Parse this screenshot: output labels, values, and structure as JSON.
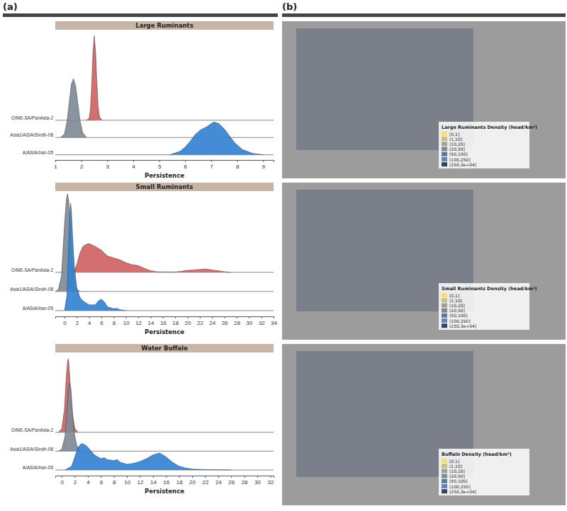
{
  "panels": [
    "(a)",
    "(b)"
  ],
  "chart_data": [
    {
      "type": "ridgeline",
      "title": "Large Ruminants",
      "x_label": "Persistence",
      "xlim": [
        1,
        9.4
      ],
      "xticks": [
        1,
        2,
        3,
        4,
        5,
        6,
        7,
        8,
        9
      ],
      "ylim": [
        -0.3,
        7.2
      ],
      "series": [
        {
          "name": "O/ME-SA/PanAsia-2",
          "color": "#cf6363",
          "x": [
            2.2,
            2.3,
            2.35,
            2.4,
            2.45,
            2.5,
            2.55,
            2.6,
            2.65,
            2.7,
            2.8
          ],
          "values": [
            0,
            0.1,
            0.6,
            2.0,
            3.9,
            4.9,
            4.0,
            2.2,
            0.8,
            0.2,
            0
          ]
        },
        {
          "name": "Asia1/ASIA/Sindh-08",
          "color": "#7f8b97",
          "x": [
            1.2,
            1.35,
            1.45,
            1.55,
            1.62,
            1.7,
            1.78,
            1.85,
            1.95,
            2.05,
            2.2
          ],
          "values": [
            0,
            0.2,
            0.9,
            2.2,
            3.1,
            3.4,
            3.0,
            2.2,
            1.0,
            0.3,
            0
          ]
        },
        {
          "name": "A/ASIA/Iran-05",
          "color": "#3483d2",
          "x": [
            5.4,
            5.8,
            6.0,
            6.2,
            6.4,
            6.6,
            6.8,
            7.0,
            7.1,
            7.3,
            7.5,
            7.7,
            7.9,
            8.2,
            8.6,
            9.0
          ],
          "values": [
            0,
            0.2,
            0.45,
            0.8,
            1.2,
            1.45,
            1.6,
            1.8,
            1.9,
            1.8,
            1.5,
            1.1,
            0.7,
            0.3,
            0.08,
            0
          ]
        }
      ]
    },
    {
      "type": "ridgeline",
      "title": "Small Ruminants",
      "x_label": "Persistence",
      "xlim": [
        -1.5,
        34
      ],
      "xticks": [
        0,
        2,
        4,
        6,
        8,
        10,
        12,
        14,
        16,
        18,
        20,
        22,
        24,
        26,
        28,
        30,
        32,
        34
      ],
      "ylim": [
        -0.3,
        6.2
      ],
      "series": [
        {
          "name": "O/ME-SA/PanAsia-2",
          "color": "#cf6363",
          "x": [
            0.5,
            1.5,
            2,
            2.5,
            3,
            3.5,
            4,
            5,
            6,
            6.5,
            7,
            8,
            9,
            10,
            11,
            12,
            13,
            14,
            15,
            16,
            18,
            19,
            20,
            21,
            22,
            23,
            24,
            25,
            26,
            27
          ],
          "values": [
            0,
            0.05,
            0.4,
            1.0,
            1.35,
            1.45,
            1.5,
            1.35,
            1.15,
            1.0,
            0.85,
            0.75,
            0.65,
            0.5,
            0.4,
            0.35,
            0.2,
            0.08,
            0.03,
            0.02,
            0.02,
            0.05,
            0.1,
            0.12,
            0.15,
            0.17,
            0.12,
            0.08,
            0.03,
            0
          ]
        },
        {
          "name": "Asia1/ASIA/Sindh-08",
          "color": "#7f8b97",
          "x": [
            -1.5,
            -1,
            -0.5,
            0,
            0.3,
            0.5,
            0.7,
            1.0,
            1.3,
            1.6,
            2.0,
            2.5
          ],
          "values": [
            0,
            0.1,
            0.8,
            3.5,
            4.8,
            5.1,
            4.7,
            3.2,
            1.5,
            0.5,
            0.1,
            0
          ]
        },
        {
          "name": "A/ASIA/Iran-05",
          "color": "#3483d2",
          "x": [
            0,
            0.4,
            0.7,
            0.9,
            1.0,
            1.1,
            1.3,
            1.6,
            2,
            2.5,
            3,
            4,
            5,
            5.5,
            6,
            6.5,
            7,
            8,
            8.5,
            9,
            10
          ],
          "values": [
            0,
            0.8,
            3.5,
            5.2,
            5.6,
            5.3,
            4.0,
            2.3,
            1.2,
            0.7,
            0.5,
            0.3,
            0.3,
            0.5,
            0.6,
            0.45,
            0.2,
            0.1,
            0.12,
            0.05,
            0
          ]
        }
      ]
    },
    {
      "type": "ridgeline",
      "title": "Water Buffalo",
      "x_label": "Persistence",
      "xlim": [
        -1,
        32.5
      ],
      "xticks": [
        0,
        2,
        4,
        6,
        8,
        10,
        12,
        14,
        16,
        18,
        20,
        22,
        24,
        26,
        28,
        30,
        32
      ],
      "ylim": [
        -0.3,
        6.2
      ],
      "series": [
        {
          "name": "O/ME-SA/PanAsia-2",
          "color": "#cf6363",
          "x": [
            -0.5,
            0,
            0.4,
            0.7,
            0.9,
            1.0,
            1.1,
            1.3,
            1.6,
            2.0,
            2.5
          ],
          "values": [
            0,
            0.2,
            1.2,
            3.0,
            3.8,
            3.9,
            3.6,
            2.5,
            1.0,
            0.2,
            0
          ]
        },
        {
          "name": "Asia1/ASIA/Sindh-08",
          "color": "#7f8b97",
          "x": [
            -0.5,
            0,
            0.5,
            0.8,
            1.0,
            1.2,
            1.4,
            1.6,
            1.9,
            2.3,
            2.8
          ],
          "values": [
            0,
            0.1,
            0.8,
            2.2,
            3.2,
            3.6,
            3.3,
            2.3,
            1.0,
            0.3,
            0
          ]
        },
        {
          "name": "A/ASIA/Iran-05",
          "color": "#3483d2",
          "x": [
            0.5,
            1.5,
            2,
            2.5,
            3,
            3.5,
            4,
            5,
            6,
            6.5,
            7,
            8,
            8.5,
            9,
            10,
            11,
            12,
            13,
            14,
            15,
            16,
            17,
            18,
            19,
            20,
            22,
            24,
            26
          ],
          "values": [
            0,
            0.2,
            0.7,
            1.2,
            1.4,
            1.35,
            1.2,
            0.8,
            0.6,
            0.65,
            0.55,
            0.5,
            0.55,
            0.4,
            0.3,
            0.35,
            0.45,
            0.6,
            0.8,
            0.9,
            0.7,
            0.4,
            0.2,
            0.1,
            0.05,
            0.02,
            0.01,
            0
          ]
        }
      ]
    }
  ],
  "maps": [
    {
      "legend_title": "Large Ruminants Density (head/km²)",
      "legend": [
        {
          "label": "[0,1]",
          "color": "#f2e26c"
        },
        {
          "label": "(1,10]",
          "color": "#c8c184"
        },
        {
          "label": "(10,20]",
          "color": "#a2a38d"
        },
        {
          "label": "(20,50]",
          "color": "#808995"
        },
        {
          "label": "(50,100]",
          "color": "#637796"
        },
        {
          "label": "(100,250]",
          "color": "#5f88b9"
        },
        {
          "label": "(250,3e+04]",
          "color": "#34435f"
        }
      ]
    },
    {
      "legend_title": "Small Ruminants Density (head/km²)",
      "legend": [
        {
          "label": "[0,1]",
          "color": "#f2e26c"
        },
        {
          "label": "(1,10]",
          "color": "#c8c184"
        },
        {
          "label": "(10,20]",
          "color": "#a2a38d"
        },
        {
          "label": "(20,50]",
          "color": "#808995"
        },
        {
          "label": "(50,100]",
          "color": "#637796"
        },
        {
          "label": "(100,250]",
          "color": "#5f88b9"
        },
        {
          "label": "(250,3e+04]",
          "color": "#34435f"
        }
      ]
    },
    {
      "legend_title": "Buffalo Density (head/km²)",
      "legend": [
        {
          "label": "[0,1]",
          "color": "#f2e26c"
        },
        {
          "label": "(1,10]",
          "color": "#c8c184"
        },
        {
          "label": "(10,20]",
          "color": "#a2a38d"
        },
        {
          "label": "(20,50]",
          "color": "#808995"
        },
        {
          "label": "(50,100]",
          "color": "#637796"
        },
        {
          "label": "(100,250]",
          "color": "#5f88b9"
        },
        {
          "label": "(250,3e+04]",
          "color": "#34435f"
        }
      ]
    }
  ]
}
